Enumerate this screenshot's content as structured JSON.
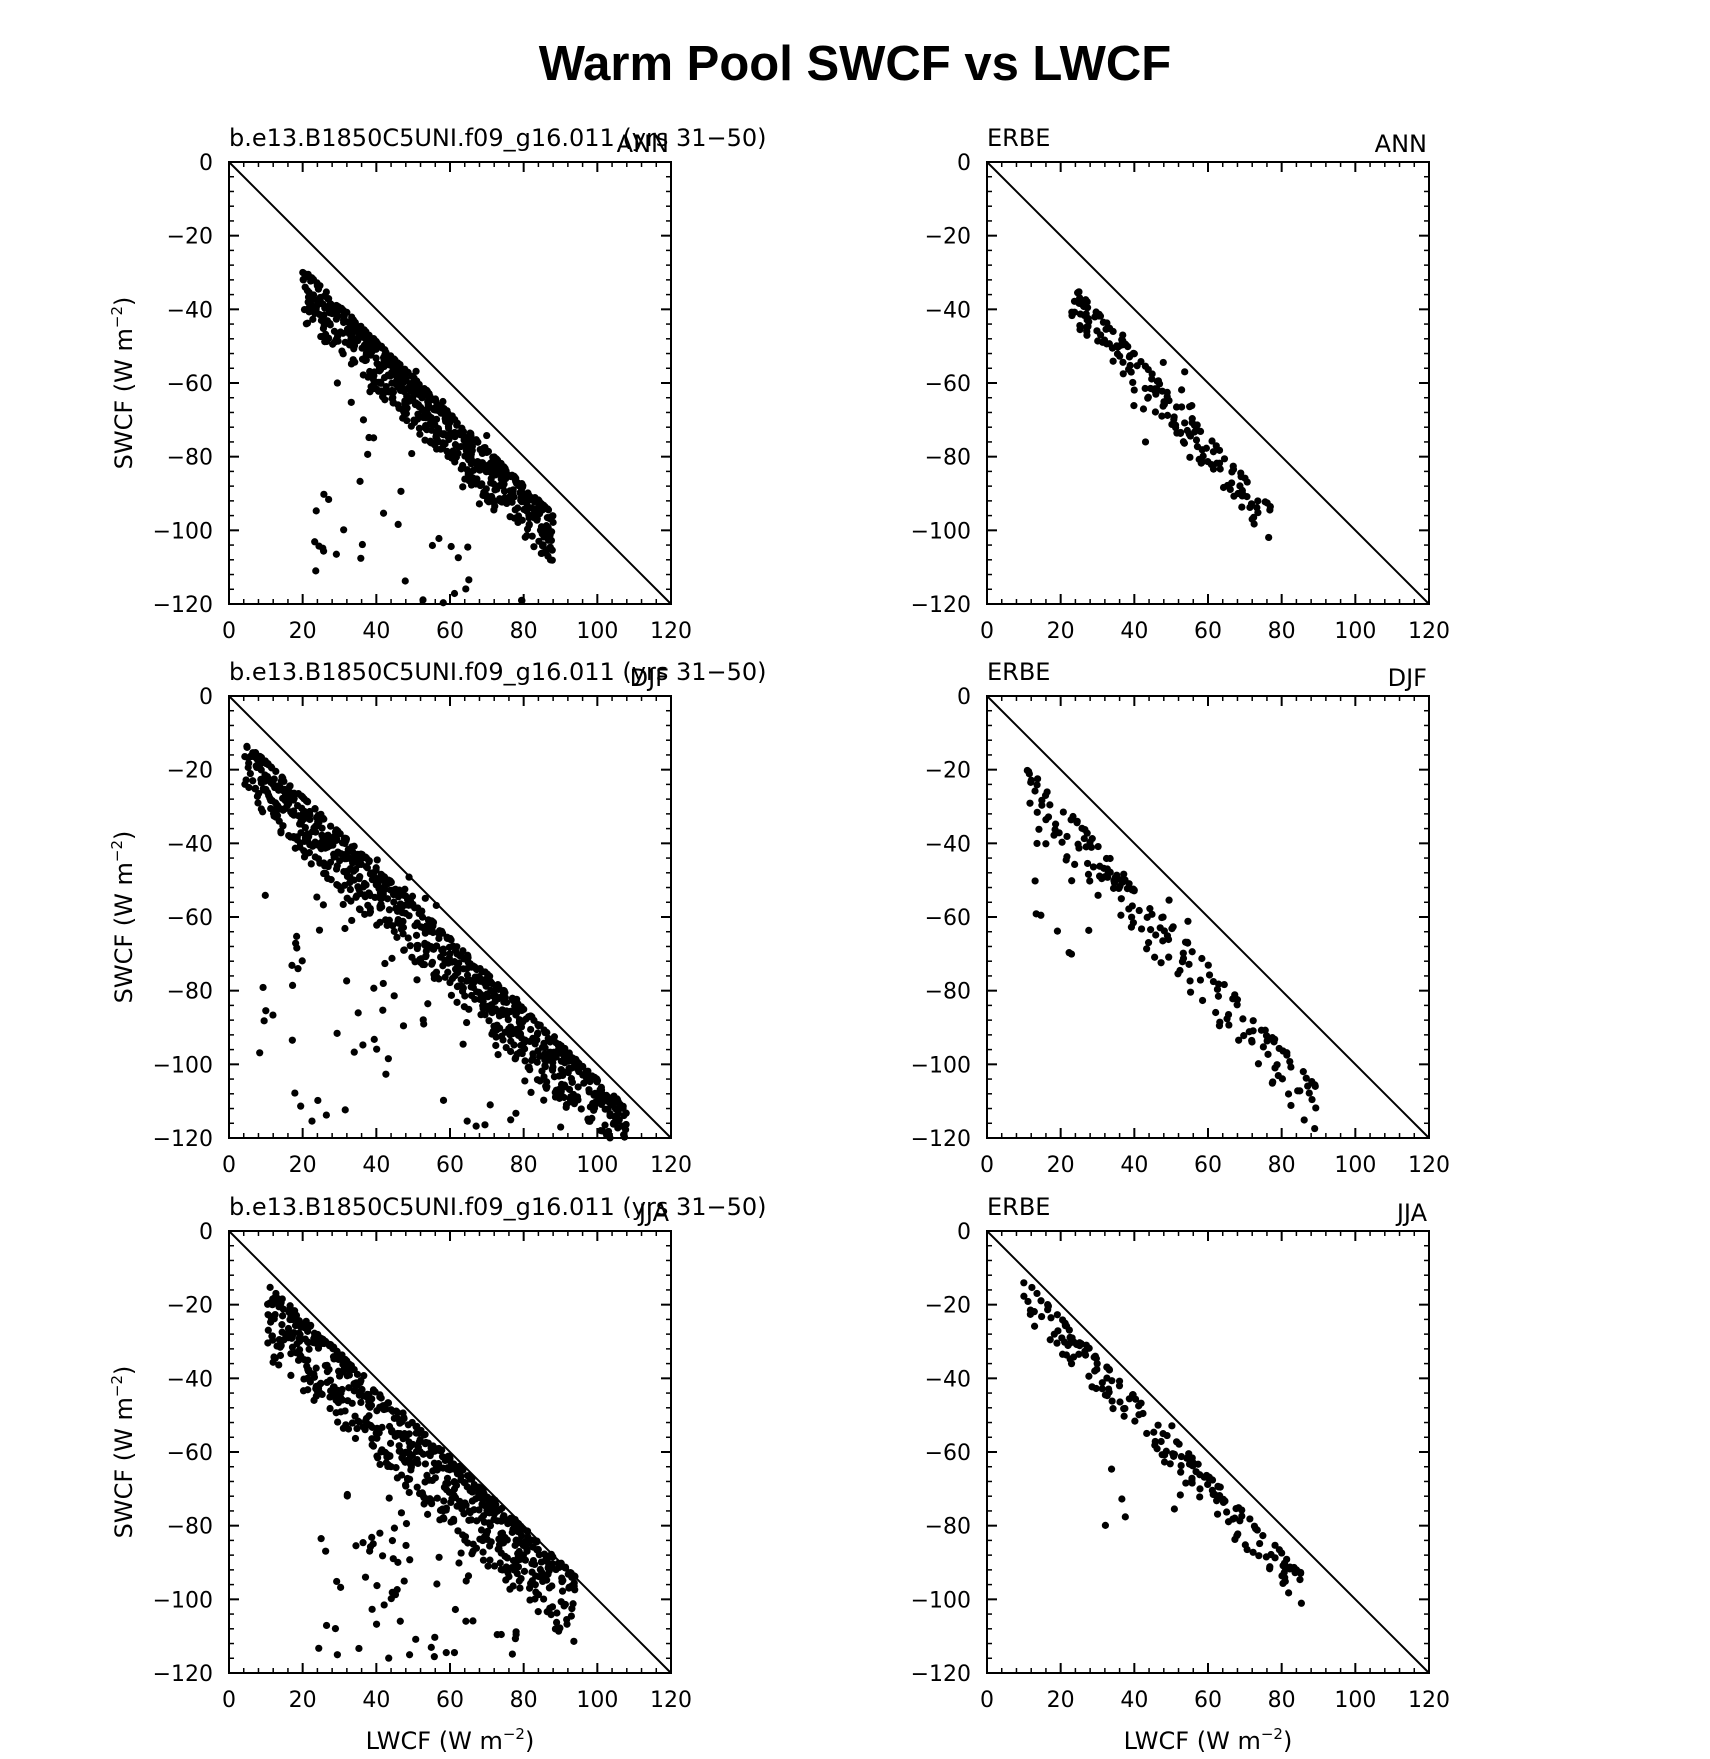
{
  "figure": {
    "title": "Warm Pool SWCF vs LWCF",
    "xlabel": "LWCF (W m",
    "ylabel": "SWCF (W m",
    "unit_exponent": "−2"
  },
  "chart_data": [
    {
      "type": "scatter",
      "left_label": "b.e13.B1850C5UNI.f09_g16.011 (yrs 31−50)",
      "right_label": "ANN",
      "xlim": [
        0,
        120
      ],
      "ylim": [
        -120,
        0
      ],
      "xticks": [
        "0",
        "20",
        "40",
        "60",
        "80",
        "100",
        "120"
      ],
      "yticks": [
        "0",
        "−20",
        "−40",
        "−60",
        "−80",
        "−100",
        "−120"
      ],
      "reference_line": [
        [
          0,
          0
        ],
        [
          120,
          -120
        ]
      ],
      "cloud": {
        "seed": 11,
        "n_main": 700,
        "main_x": [
          20,
          88
        ],
        "main_y0": -29,
        "main_slope": -0.98,
        "main_offset": [
          0,
          14
        ],
        "n_out": 60,
        "out_x": [
          22,
          82
        ],
        "out_y": [
          -120,
          -55
        ]
      }
    },
    {
      "type": "scatter",
      "left_label": "ERBE",
      "right_label": "ANN",
      "xlim": [
        0,
        120
      ],
      "ylim": [
        -120,
        0
      ],
      "xticks": [
        "0",
        "20",
        "40",
        "60",
        "80",
        "100",
        "120"
      ],
      "yticks": [
        "0",
        "−20",
        "−40",
        "−60",
        "−80",
        "−100",
        "−120"
      ],
      "reference_line": [
        [
          0,
          0
        ],
        [
          120,
          -120
        ]
      ],
      "cloud": {
        "seed": 23,
        "n_main": 170,
        "main_x": [
          23,
          77
        ],
        "main_y0": -33,
        "main_slope": -1.12,
        "main_offset": [
          0,
          10
        ],
        "n_out": 15,
        "out_x": [
          30,
          70
        ],
        "out_y": [
          -95,
          -40
        ]
      }
    },
    {
      "type": "scatter",
      "left_label": "b.e13.B1850C5UNI.f09_g16.011 (yrs 31−50)",
      "right_label": "DJF",
      "xlim": [
        0,
        120
      ],
      "ylim": [
        -120,
        0
      ],
      "xticks": [
        "0",
        "20",
        "40",
        "60",
        "80",
        "100",
        "120"
      ],
      "yticks": [
        "0",
        "−20",
        "−40",
        "−60",
        "−80",
        "−100",
        "−120"
      ],
      "reference_line": [
        [
          0,
          0
        ],
        [
          120,
          -120
        ]
      ],
      "cloud": {
        "seed": 37,
        "n_main": 850,
        "main_x": [
          4,
          108
        ],
        "main_y0": -12,
        "main_slope": -0.96,
        "main_offset": [
          0,
          16
        ],
        "n_out": 120,
        "out_x": [
          8,
          100
        ],
        "out_y": [
          -118,
          -40
        ]
      }
    },
    {
      "type": "scatter",
      "left_label": "ERBE",
      "right_label": "DJF",
      "xlim": [
        0,
        120
      ],
      "ylim": [
        -120,
        0
      ],
      "xticks": [
        "0",
        "20",
        "40",
        "60",
        "80",
        "100",
        "120"
      ],
      "yticks": [
        "0",
        "−20",
        "−40",
        "−60",
        "−80",
        "−100",
        "−120"
      ],
      "reference_line": [
        [
          0,
          0
        ],
        [
          120,
          -120
        ]
      ],
      "cloud": {
        "seed": 41,
        "n_main": 180,
        "main_x": [
          10,
          90
        ],
        "main_y0": -18,
        "main_slope": -1.1,
        "main_offset": [
          0,
          14
        ],
        "n_out": 20,
        "out_x": [
          12,
          60
        ],
        "out_y": [
          -72,
          -40
        ]
      }
    },
    {
      "type": "scatter",
      "left_label": "b.e13.B1850C5UNI.f09_g16.011 (yrs 31−50)",
      "right_label": "JJA",
      "xlim": [
        0,
        120
      ],
      "ylim": [
        -120,
        0
      ],
      "xticks": [
        "0",
        "20",
        "40",
        "60",
        "80",
        "100",
        "120"
      ],
      "yticks": [
        "0",
        "−20",
        "−40",
        "−60",
        "−80",
        "−100",
        "−120"
      ],
      "reference_line": [
        [
          0,
          0
        ],
        [
          120,
          -120
        ]
      ],
      "cloud": {
        "seed": 53,
        "n_main": 700,
        "main_x": [
          10,
          94
        ],
        "main_y0": -14,
        "main_slope": -0.95,
        "main_offset": [
          0,
          20
        ],
        "n_out": 80,
        "out_x": [
          22,
          80
        ],
        "out_y": [
          -117,
          -70
        ]
      }
    },
    {
      "type": "scatter",
      "left_label": "ERBE",
      "right_label": "JJA",
      "xlim": [
        0,
        120
      ],
      "ylim": [
        -120,
        0
      ],
      "xticks": [
        "0",
        "20",
        "40",
        "60",
        "80",
        "100",
        "120"
      ],
      "yticks": [
        "0",
        "−20",
        "−40",
        "−60",
        "−80",
        "−100",
        "−120"
      ],
      "reference_line": [
        [
          0,
          0
        ],
        [
          120,
          -120
        ]
      ],
      "cloud": {
        "seed": 67,
        "n_main": 190,
        "main_x": [
          10,
          86
        ],
        "main_y0": -13,
        "main_slope": -1.06,
        "main_offset": [
          0,
          10
        ],
        "n_out": 10,
        "out_x": [
          30,
          70
        ],
        "out_y": [
          -80,
          -50
        ]
      }
    }
  ]
}
